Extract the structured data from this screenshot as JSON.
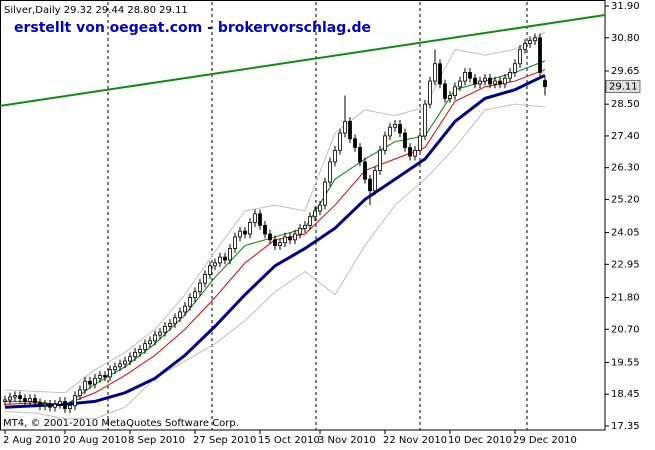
{
  "chart_data": {
    "type": "candlestick",
    "title": "Silver,Daily  29.32 29.44 28.80 29.11",
    "annotation": "erstellt von oegeat.com - brokervorschlag.de",
    "footer": "MT4, © 2001-2010 MetaQuotes Software Corp.",
    "xlim": [
      -1,
      120
    ],
    "ylim": [
      17.21,
      32.04
    ],
    "xticks": [
      {
        "value": 0,
        "label": "2 Aug 2010"
      },
      {
        "value": 12,
        "label": "20 Aug 2010"
      },
      {
        "value": 25,
        "label": "8 Sep 2010"
      },
      {
        "value": 38,
        "label": "27 Sep 2010"
      },
      {
        "value": 51,
        "label": "15 Oct 2010"
      },
      {
        "value": 63,
        "label": "3 Nov 2010"
      },
      {
        "value": 76,
        "label": "22 Nov 2010"
      },
      {
        "value": 89,
        "label": "10 Dec 2010"
      },
      {
        "value": 102,
        "label": "29 Dec 2010"
      }
    ],
    "yticks": [
      {
        "value": 31.9,
        "label": "31.90"
      },
      {
        "value": 30.8,
        "label": "30.80"
      },
      29.65,
      {
        "value": 28.5,
        "label": "28.50"
      },
      {
        "value": 27.4,
        "label": "27.40"
      },
      {
        "value": 26.3,
        "label": "26.30"
      },
      {
        "value": 25.2,
        "label": "25.20"
      },
      24.05,
      22.95,
      {
        "value": 21.8,
        "label": "21.80"
      },
      {
        "value": 20.7,
        "label": "20.70"
      },
      19.55,
      18.45,
      17.35
    ],
    "up_color": "#ffffff",
    "down_color": "#000000",
    "open": [
      18.2,
      18.25,
      18.35,
      18.4,
      18.3,
      18.2,
      18.3,
      18.15,
      18.05,
      18.1,
      18.0,
      18.1,
      18.2,
      17.95,
      18.05,
      18.4,
      18.6,
      18.9,
      18.8,
      19.0,
      19.1,
      19.05,
      19.3,
      19.4,
      19.5,
      19.6,
      19.75,
      19.9,
      20.0,
      20.2,
      20.3,
      20.5,
      20.6,
      20.8,
      20.9,
      21.1,
      21.3,
      21.5,
      21.8,
      22.0,
      22.3,
      22.6,
      22.9,
      23.0,
      23.2,
      23.1,
      23.5,
      23.9,
      24.1,
      24.0,
      24.4,
      24.7,
      24.3,
      24.0,
      23.8,
      23.6,
      23.7,
      23.9,
      23.8,
      24.0,
      24.2,
      24.3,
      24.6,
      24.8,
      25.0,
      25.8,
      26.5,
      26.9,
      27.5,
      27.9,
      27.3,
      27.0,
      26.5,
      25.9,
      25.5,
      26.2,
      26.9,
      27.4,
      27.7,
      27.8,
      27.5,
      27.0,
      26.7,
      26.9,
      27.4,
      28.5,
      29.3,
      29.9,
      29.2,
      28.7,
      28.8,
      29.1,
      29.3,
      29.6,
      29.4,
      29.2,
      29.3,
      29.4,
      29.2,
      29.3,
      29.2,
      29.4,
      29.6,
      29.9,
      30.4,
      30.6,
      30.7,
      30.8,
      29.32
    ],
    "high": [
      18.4,
      18.5,
      18.55,
      18.55,
      18.45,
      18.45,
      18.45,
      18.3,
      18.25,
      18.25,
      18.25,
      18.35,
      18.35,
      18.2,
      18.55,
      18.75,
      19.05,
      19.05,
      19.15,
      19.25,
      19.25,
      19.45,
      19.55,
      19.65,
      19.75,
      19.9,
      20.05,
      20.15,
      20.35,
      20.45,
      20.65,
      20.75,
      20.95,
      21.05,
      21.25,
      21.45,
      21.65,
      21.95,
      22.15,
      22.45,
      22.75,
      23.05,
      23.15,
      23.35,
      23.35,
      23.65,
      24.05,
      24.25,
      24.25,
      24.55,
      24.85,
      24.85,
      24.45,
      24.15,
      23.95,
      23.85,
      24.05,
      24.05,
      24.15,
      24.35,
      24.45,
      24.75,
      24.95,
      25.15,
      25.95,
      26.65,
      27.05,
      27.65,
      28.8,
      28.05,
      27.45,
      27.15,
      26.65,
      26.05,
      26.35,
      27.05,
      27.55,
      27.85,
      27.95,
      27.95,
      27.65,
      27.15,
      27.05,
      27.55,
      28.65,
      29.45,
      30.4,
      30.05,
      29.35,
      28.95,
      29.25,
      29.45,
      29.75,
      29.75,
      29.55,
      29.45,
      29.55,
      29.55,
      29.45,
      29.45,
      29.55,
      29.75,
      30.05,
      30.55,
      30.75,
      30.85,
      30.95,
      30.95,
      29.44
    ],
    "low": [
      18.05,
      18.1,
      18.2,
      18.15,
      18.05,
      18.05,
      18.0,
      17.9,
      17.9,
      17.85,
      17.85,
      17.95,
      17.8,
      17.8,
      17.9,
      18.25,
      18.45,
      18.65,
      18.65,
      18.85,
      18.9,
      18.9,
      19.15,
      19.25,
      19.35,
      19.45,
      19.6,
      19.75,
      19.85,
      20.05,
      20.15,
      20.35,
      20.45,
      20.65,
      20.75,
      20.95,
      21.15,
      21.35,
      21.65,
      21.85,
      22.15,
      22.45,
      22.75,
      22.85,
      22.95,
      22.95,
      23.35,
      23.75,
      23.85,
      23.85,
      24.25,
      24.15,
      23.85,
      23.65,
      23.45,
      23.45,
      23.55,
      23.65,
      23.65,
      23.85,
      24.05,
      24.15,
      24.45,
      24.65,
      24.85,
      25.65,
      26.35,
      26.75,
      27.35,
      27.15,
      26.85,
      26.35,
      25.75,
      25.0,
      25.35,
      26.05,
      26.75,
      27.25,
      27.55,
      27.35,
      26.85,
      26.55,
      26.55,
      26.75,
      27.25,
      28.35,
      29.15,
      29.05,
      28.55,
      28.55,
      28.65,
      28.95,
      29.15,
      29.25,
      29.05,
      29.05,
      29.15,
      29.05,
      29.05,
      29.05,
      29.05,
      29.25,
      29.45,
      29.75,
      30.25,
      30.45,
      30.55,
      29.45,
      28.8
    ],
    "close": [
      18.25,
      18.35,
      18.4,
      18.3,
      18.2,
      18.3,
      18.15,
      18.05,
      18.1,
      18.0,
      18.1,
      18.2,
      17.95,
      18.05,
      18.4,
      18.6,
      18.9,
      18.8,
      19.0,
      19.1,
      19.05,
      19.3,
      19.4,
      19.5,
      19.6,
      19.75,
      19.9,
      20.0,
      20.2,
      20.3,
      20.5,
      20.6,
      20.8,
      20.9,
      21.1,
      21.3,
      21.5,
      21.8,
      22.0,
      22.3,
      22.6,
      22.9,
      23.0,
      23.2,
      23.1,
      23.5,
      23.9,
      24.1,
      24.0,
      24.4,
      24.7,
      24.3,
      24.0,
      23.8,
      23.6,
      23.7,
      23.9,
      23.8,
      24.0,
      24.2,
      24.3,
      24.6,
      24.8,
      25.0,
      25.8,
      26.5,
      26.9,
      27.5,
      27.9,
      27.3,
      27.0,
      26.5,
      25.9,
      25.5,
      26.2,
      26.9,
      27.4,
      27.7,
      27.8,
      27.5,
      27.0,
      26.7,
      26.9,
      27.4,
      28.5,
      29.3,
      29.9,
      29.2,
      28.7,
      28.8,
      29.1,
      29.3,
      29.6,
      29.4,
      29.2,
      29.3,
      29.4,
      29.2,
      29.3,
      29.2,
      29.4,
      29.6,
      29.9,
      30.4,
      30.6,
      30.7,
      30.8,
      29.6,
      29.11
    ],
    "indicator_x": [
      0,
      6,
      12,
      18,
      24,
      30,
      36,
      42,
      48,
      54,
      60,
      66,
      72,
      78,
      84,
      90,
      96,
      102,
      108
    ],
    "indicators": [
      {
        "color": "#c0c0c0",
        "width": 1,
        "values": [
          18.6,
          18.55,
          18.5,
          19.3,
          19.9,
          20.7,
          21.9,
          23.4,
          24.8,
          25.0,
          24.8,
          27.5,
          28.3,
          28.1,
          28.4,
          30.4,
          30.2,
          30.4,
          31.0
        ]
      },
      {
        "color": "#c0c0c0",
        "width": 1,
        "values": [
          17.85,
          17.8,
          17.6,
          17.6,
          18.0,
          19.0,
          19.6,
          20.2,
          21.0,
          22.0,
          22.7,
          21.9,
          23.6,
          25.0,
          25.9,
          27.0,
          28.3,
          28.5,
          28.4
        ]
      },
      {
        "color": "#008000",
        "width": 1,
        "values": [
          18.2,
          18.2,
          18.05,
          18.8,
          19.4,
          20.2,
          21.2,
          22.5,
          23.6,
          23.9,
          24.2,
          25.9,
          26.6,
          27.2,
          27.4,
          29.0,
          29.3,
          29.6,
          30.0
        ]
      },
      {
        "color": "#e00000",
        "width": 1,
        "values": [
          18.1,
          18.15,
          18.1,
          18.5,
          19.1,
          19.8,
          20.7,
          21.8,
          23.0,
          23.8,
          24.0,
          25.0,
          26.2,
          26.6,
          27.0,
          28.6,
          29.1,
          29.3,
          29.7
        ]
      },
      {
        "color": "#00008b",
        "width": 3,
        "values": [
          18.0,
          18.05,
          18.1,
          18.2,
          18.5,
          19.0,
          19.8,
          20.8,
          21.9,
          22.9,
          23.5,
          24.2,
          25.2,
          25.9,
          26.6,
          27.9,
          28.7,
          29.0,
          29.5
        ]
      }
    ],
    "trendline": {
      "color": "#108a10",
      "x": [
        -1,
        120
      ],
      "values": [
        28.44,
        31.59
      ]
    }
  }
}
